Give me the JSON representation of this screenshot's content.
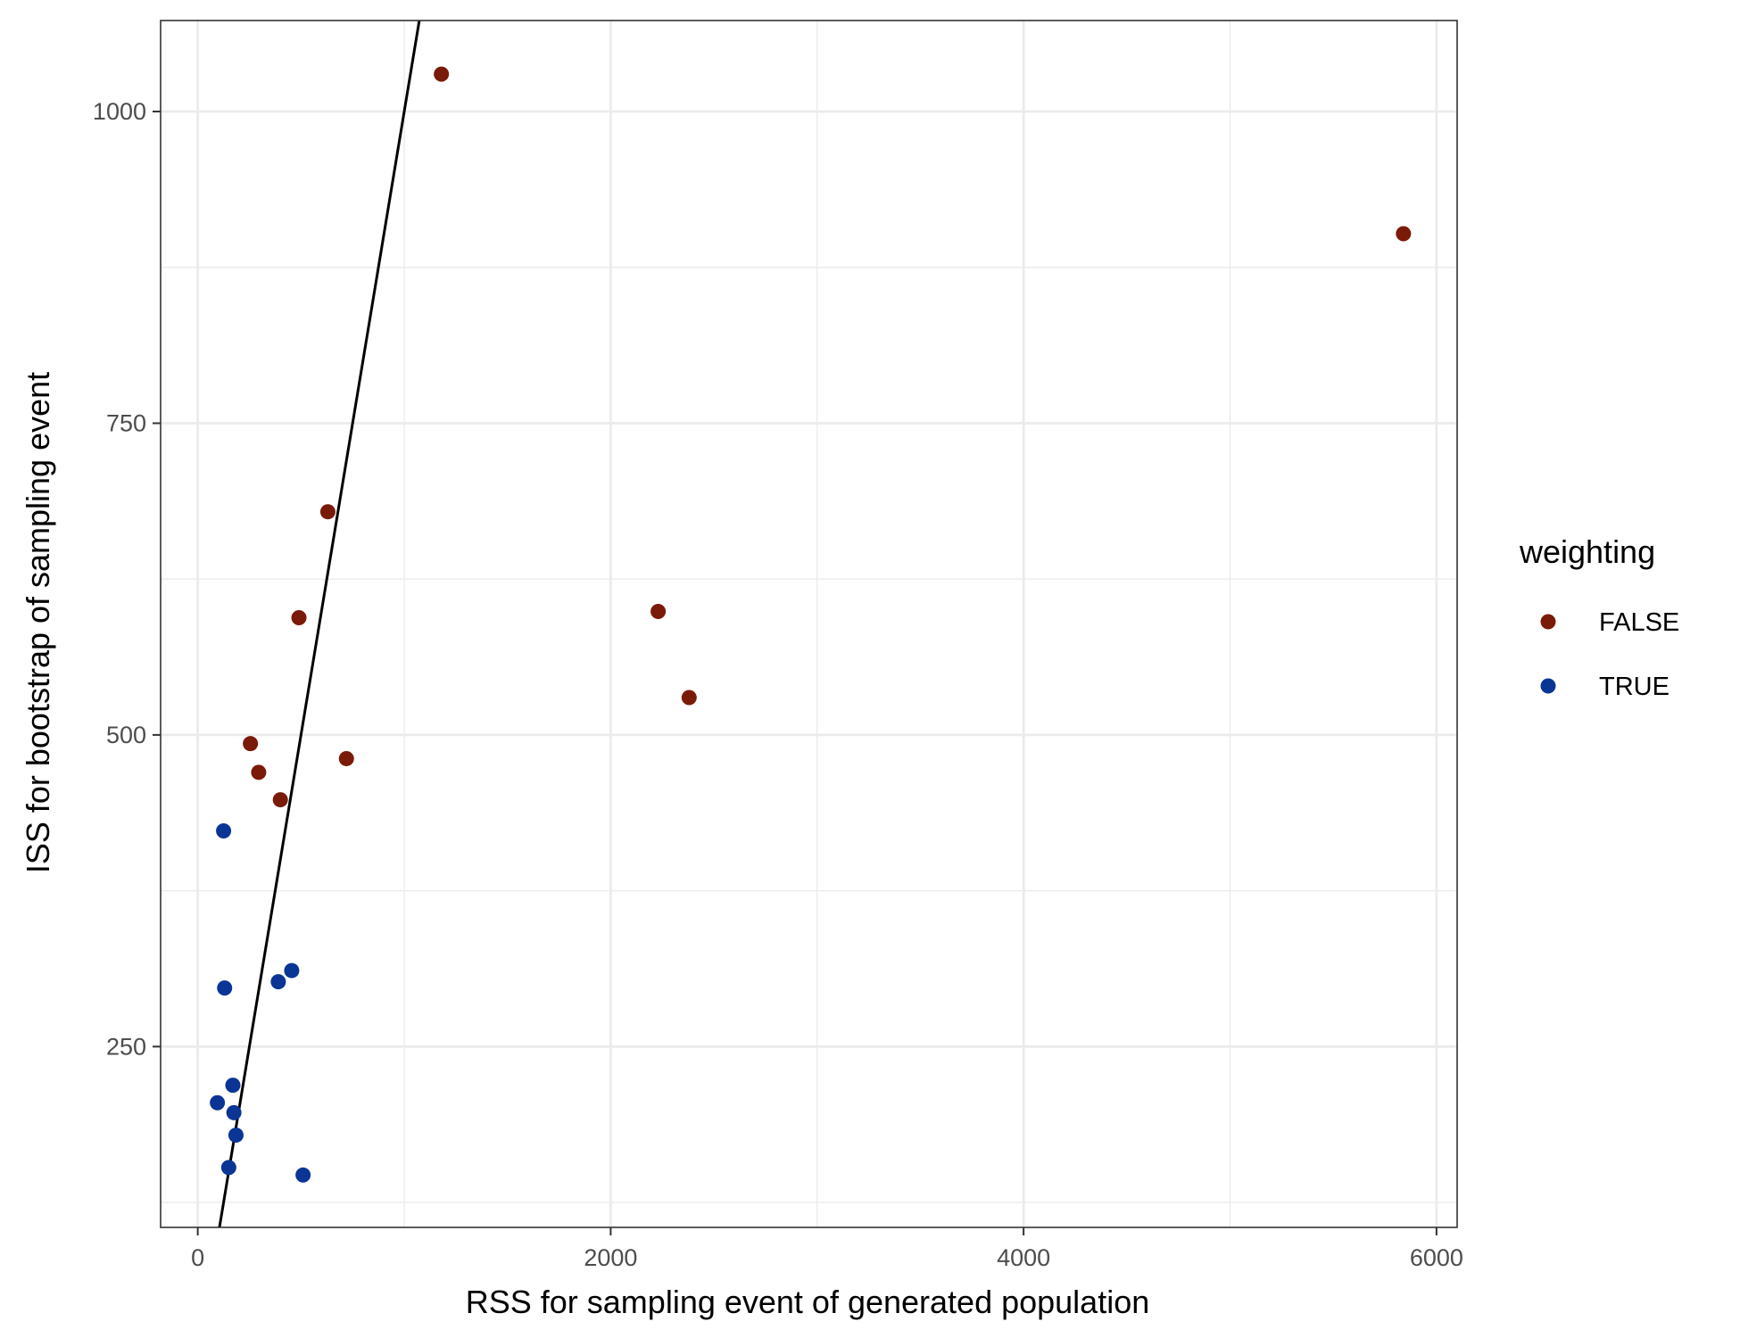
{
  "chart_data": {
    "type": "scatter",
    "title": "",
    "xlabel": "RSS for sampling event of generated population",
    "ylabel": "ISS for bootstrap of sampling event",
    "xlim": [
      -180,
      6100
    ],
    "ylim": [
      105,
      1073
    ],
    "x_ticks": [
      0,
      2000,
      4000,
      6000
    ],
    "x_tick_labels": [
      "0",
      "2000",
      "4000",
      "6000"
    ],
    "x_minor_ticks": [
      1000,
      3000,
      5000
    ],
    "y_ticks": [
      250,
      500,
      750,
      1000
    ],
    "y_tick_labels": [
      "250",
      "500",
      "750",
      "1000"
    ],
    "y_minor_ticks": [
      125,
      375,
      625,
      875
    ],
    "grid": true,
    "legend_title": "weighting",
    "legend_position": "right",
    "series": [
      {
        "name": "FALSE",
        "color": "#7a1a08",
        "points": [
          {
            "x": 1180,
            "y": 1030
          },
          {
            "x": 5840,
            "y": 902
          },
          {
            "x": 630,
            "y": 679
          },
          {
            "x": 2230,
            "y": 599
          },
          {
            "x": 490,
            "y": 594
          },
          {
            "x": 2380,
            "y": 530
          },
          {
            "x": 255,
            "y": 493
          },
          {
            "x": 720,
            "y": 481
          },
          {
            "x": 295,
            "y": 470
          },
          {
            "x": 400,
            "y": 448
          }
        ]
      },
      {
        "name": "TRUE",
        "color": "#0a3595",
        "points": [
          {
            "x": 125,
            "y": 423
          },
          {
            "x": 455,
            "y": 311
          },
          {
            "x": 390,
            "y": 302
          },
          {
            "x": 130,
            "y": 297
          },
          {
            "x": 170,
            "y": 219
          },
          {
            "x": 95,
            "y": 205
          },
          {
            "x": 175,
            "y": 197
          },
          {
            "x": 185,
            "y": 179
          },
          {
            "x": 150,
            "y": 153
          },
          {
            "x": 510,
            "y": 147
          }
        ]
      }
    ],
    "reference_line": {
      "slope": 1.0,
      "intercept": 0.0,
      "color": "#000000"
    }
  }
}
